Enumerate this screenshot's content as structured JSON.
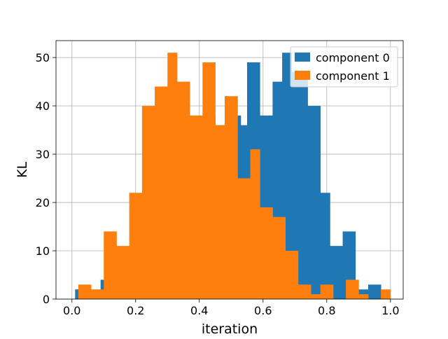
{
  "chart_data": {
    "type": "histogram",
    "title": "",
    "xlabel": "iteration",
    "ylabel": "KL",
    "xlim": [
      -0.05,
      1.04
    ],
    "ylim": [
      0,
      53.5
    ],
    "xticks": [
      "0.0",
      "0.2",
      "0.4",
      "0.6",
      "0.8",
      "1.0"
    ],
    "yticks": [
      "0",
      "10",
      "20",
      "30",
      "40",
      "50"
    ],
    "grid": true,
    "legend_position": "top-right",
    "series": [
      {
        "name": "component 0",
        "color": "#1f77b4",
        "bins": [
          [
            0.01,
            0.03,
            2
          ],
          [
            0.03,
            0.06,
            0
          ],
          [
            0.06,
            0.09,
            0
          ],
          [
            0.09,
            0.11,
            4
          ],
          [
            0.11,
            0.15,
            3
          ],
          [
            0.15,
            0.18,
            3
          ],
          [
            0.18,
            0.22,
            5
          ],
          [
            0.22,
            0.26,
            10
          ],
          [
            0.26,
            0.3,
            18
          ],
          [
            0.3,
            0.33,
            24
          ],
          [
            0.33,
            0.37,
            26
          ],
          [
            0.37,
            0.41,
            32
          ],
          [
            0.41,
            0.45,
            38
          ],
          [
            0.45,
            0.48,
            36
          ],
          [
            0.48,
            0.49,
            42
          ],
          [
            0.49,
            0.53,
            38
          ],
          [
            0.53,
            0.55,
            36
          ],
          [
            0.55,
            0.59,
            49
          ],
          [
            0.59,
            0.63,
            38
          ],
          [
            0.63,
            0.66,
            45
          ],
          [
            0.66,
            0.69,
            51
          ],
          [
            0.69,
            0.74,
            47
          ],
          [
            0.74,
            0.78,
            40
          ],
          [
            0.78,
            0.81,
            22
          ],
          [
            0.81,
            0.85,
            11
          ],
          [
            0.85,
            0.89,
            14
          ],
          [
            0.89,
            0.93,
            2
          ],
          [
            0.93,
            0.97,
            3
          ]
        ]
      },
      {
        "name": "component 1",
        "color": "#ff7f0e",
        "bins": [
          [
            0.02,
            0.06,
            3
          ],
          [
            0.06,
            0.1,
            2
          ],
          [
            0.1,
            0.14,
            14
          ],
          [
            0.14,
            0.18,
            11
          ],
          [
            0.18,
            0.22,
            22
          ],
          [
            0.22,
            0.26,
            40
          ],
          [
            0.26,
            0.3,
            44
          ],
          [
            0.3,
            0.33,
            51
          ],
          [
            0.33,
            0.37,
            45
          ],
          [
            0.37,
            0.41,
            38
          ],
          [
            0.41,
            0.45,
            49
          ],
          [
            0.45,
            0.48,
            36
          ],
          [
            0.48,
            0.52,
            42
          ],
          [
            0.52,
            0.56,
            25
          ],
          [
            0.56,
            0.59,
            31
          ],
          [
            0.59,
            0.63,
            19
          ],
          [
            0.63,
            0.67,
            17
          ],
          [
            0.67,
            0.71,
            10
          ],
          [
            0.71,
            0.75,
            3
          ],
          [
            0.75,
            0.78,
            1
          ],
          [
            0.78,
            0.82,
            3
          ],
          [
            0.82,
            0.86,
            0
          ],
          [
            0.86,
            0.9,
            4
          ],
          [
            0.9,
            0.93,
            1
          ],
          [
            0.93,
            0.97,
            0
          ],
          [
            0.97,
            1.0,
            2
          ]
        ]
      }
    ]
  }
}
